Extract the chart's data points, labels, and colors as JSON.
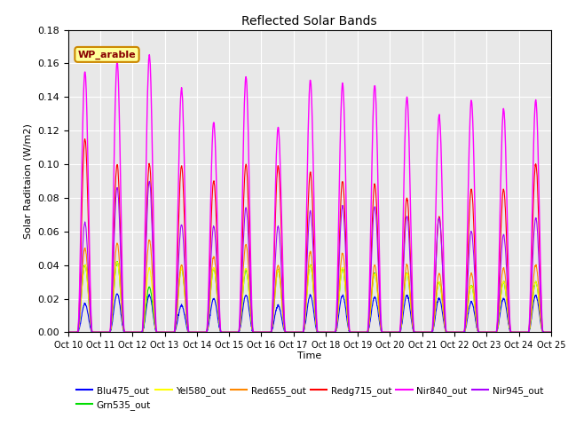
{
  "title": "Reflected Solar Bands",
  "xlabel": "Time",
  "ylabel": "Solar Raditaion (W/m2)",
  "ylim": [
    0,
    0.18
  ],
  "annotation_label": "WP_arable",
  "series_order": [
    "Blu475_out",
    "Grn535_out",
    "Yel580_out",
    "Red655_out",
    "Redg715_out",
    "Nir840_out",
    "Nir945_out"
  ],
  "series": {
    "Blu475_out": {
      "color": "#0000ff",
      "lw": 0.8
    },
    "Grn535_out": {
      "color": "#00dd00",
      "lw": 0.8
    },
    "Yel580_out": {
      "color": "#ffff00",
      "lw": 0.8
    },
    "Red655_out": {
      "color": "#ff8800",
      "lw": 0.8
    },
    "Redg715_out": {
      "color": "#ff0000",
      "lw": 0.8
    },
    "Nir840_out": {
      "color": "#ff00ff",
      "lw": 1.0
    },
    "Nir945_out": {
      "color": "#aa00ff",
      "lw": 0.8
    }
  },
  "legend_order": [
    "Blu475_out",
    "Grn535_out",
    "Yel580_out",
    "Red655_out",
    "Redg715_out",
    "Nir840_out",
    "Nir945_out"
  ],
  "bg_color": "#e8e8e8",
  "grid_color": "#ffffff",
  "xtick_labels": [
    "Oct 10",
    "Oct 11",
    "Oct 12",
    "Oct 13",
    "Oct 14",
    "Oct 15",
    "Oct 16",
    "Oct 17",
    "Oct 18",
    "Oct 19",
    "Oct 20",
    "Oct 21",
    "Oct 22",
    "Oct 23",
    "Oct 24",
    "Oct 25"
  ],
  "ytick_vals": [
    0.0,
    0.02,
    0.04,
    0.06,
    0.08,
    0.1,
    0.12,
    0.14,
    0.16,
    0.18
  ],
  "n_days": 15,
  "daily_peaks": {
    "Nir840_out": [
      0.155,
      0.161,
      0.165,
      0.145,
      0.125,
      0.152,
      0.122,
      0.15,
      0.148,
      0.147,
      0.14,
      0.129,
      0.138,
      0.133,
      0.138
    ],
    "Nir945_out": [
      0.065,
      0.086,
      0.09,
      0.064,
      0.063,
      0.074,
      0.063,
      0.072,
      0.075,
      0.075,
      0.069,
      0.068,
      0.06,
      0.058,
      0.068
    ],
    "Redg715_out": [
      0.115,
      0.1,
      0.1,
      0.099,
      0.09,
      0.1,
      0.099,
      0.095,
      0.09,
      0.088,
      0.08,
      0.069,
      0.085,
      0.085,
      0.1
    ],
    "Red655_out": [
      0.05,
      0.053,
      0.055,
      0.04,
      0.045,
      0.052,
      0.04,
      0.048,
      0.047,
      0.04,
      0.04,
      0.035,
      0.035,
      0.038,
      0.04
    ],
    "Grn535_out": [
      0.04,
      0.042,
      0.027,
      0.038,
      0.038,
      0.037,
      0.037,
      0.04,
      0.038,
      0.035,
      0.035,
      0.03,
      0.028,
      0.03,
      0.03
    ],
    "Yel580_out": [
      0.04,
      0.042,
      0.038,
      0.038,
      0.038,
      0.038,
      0.037,
      0.04,
      0.038,
      0.035,
      0.035,
      0.03,
      0.028,
      0.03,
      0.03
    ],
    "Blu475_out": [
      0.017,
      0.023,
      0.022,
      0.016,
      0.02,
      0.022,
      0.016,
      0.022,
      0.022,
      0.021,
      0.022,
      0.02,
      0.018,
      0.02,
      0.022
    ]
  }
}
